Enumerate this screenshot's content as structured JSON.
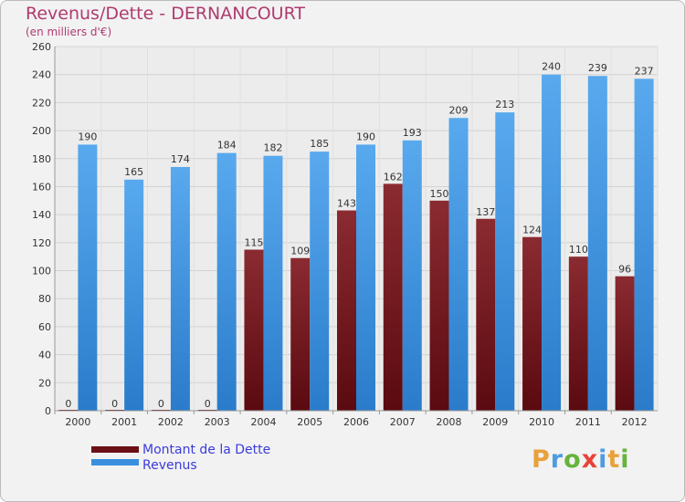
{
  "header": {
    "title": "Revenus/Dette - DERNANCOURT",
    "subtitle": "(en milliers d'€)"
  },
  "legend": [
    {
      "label": "Montant de la Dette",
      "color": "#6b1016"
    },
    {
      "label": "Revenus",
      "color": "#3a8fde"
    }
  ],
  "logo": {
    "text": "Proxiti",
    "letters": [
      {
        "char": "P",
        "color": "#e9a13b"
      },
      {
        "char": "r",
        "color": "#4f9be0"
      },
      {
        "char": "o",
        "color": "#67b33c"
      },
      {
        "char": "x",
        "color": "#e7433a"
      },
      {
        "char": "i",
        "color": "#4f9be0"
      },
      {
        "char": "t",
        "color": "#e9a13b"
      },
      {
        "char": "i",
        "color": "#67b33c"
      }
    ]
  },
  "chart_data": {
    "type": "bar",
    "title": "Revenus/Dette - DERNANCOURT",
    "subtitle": "(en milliers d'€)",
    "categories": [
      "2000",
      "2001",
      "2002",
      "2003",
      "2004",
      "2005",
      "2006",
      "2007",
      "2008",
      "2009",
      "2010",
      "2011",
      "2012"
    ],
    "series": [
      {
        "name": "Montant de la Dette",
        "color": "#6b1016",
        "values": [
          0,
          0,
          0,
          0,
          115,
          109,
          143,
          162,
          150,
          137,
          124,
          110,
          96
        ]
      },
      {
        "name": "Revenus",
        "color": "#3a8fde",
        "values": [
          190,
          165,
          174,
          184,
          182,
          185,
          190,
          193,
          209,
          213,
          240,
          239,
          237
        ]
      }
    ],
    "ylim": [
      0,
      260
    ],
    "yticks": [
      0,
      20,
      40,
      60,
      80,
      100,
      120,
      140,
      160,
      180,
      200,
      220,
      240,
      260
    ],
    "grid": true,
    "legend_position": "bottom-left"
  }
}
